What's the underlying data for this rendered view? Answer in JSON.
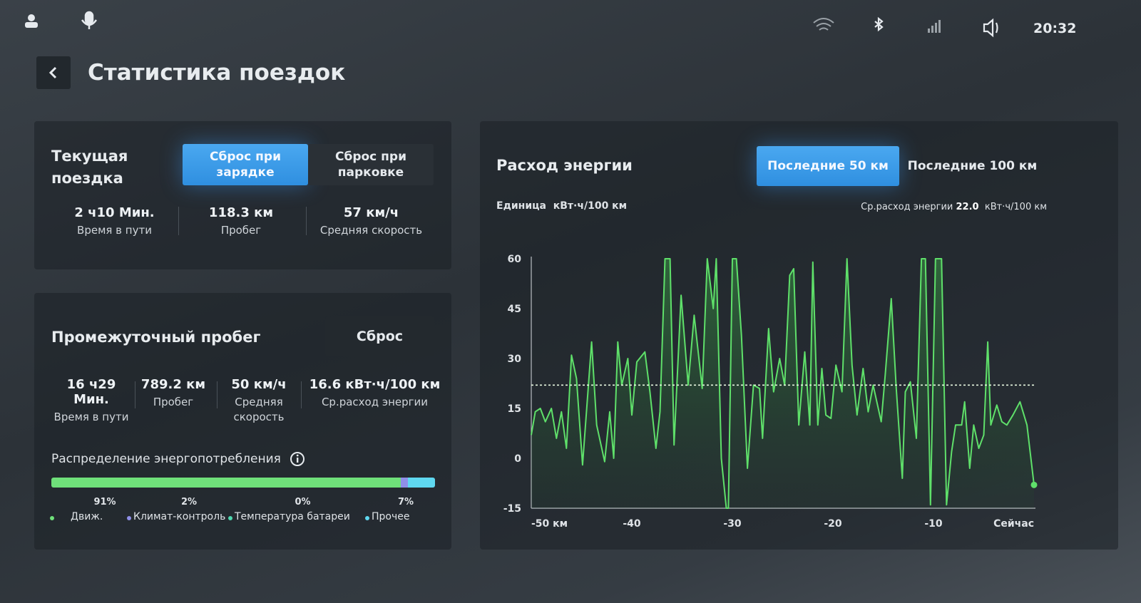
{
  "status_bar": {
    "time": "20:32"
  },
  "header": {
    "title": "Статистика поездок"
  },
  "current_trip": {
    "title": "Текущая поездка",
    "buttons": [
      "Сброс при зарядке",
      "Сброс при парковке"
    ],
    "stats": [
      {
        "value": "2 ч10 Мин.",
        "label": "Время в пути"
      },
      {
        "value": "118.3 км",
        "label": "Пробег"
      },
      {
        "value": "57 км/ч",
        "label": "Средняя скорость"
      }
    ]
  },
  "trip_meter": {
    "title": "Промежуточный пробег",
    "reset": "Сброс",
    "stats": [
      {
        "value": "16 ч29 Мин.",
        "label": "Время в пути"
      },
      {
        "value": "789.2 км",
        "label": "Пробег"
      },
      {
        "value": "50 км/ч",
        "label": "Средняя скорость"
      },
      {
        "value": "16.6 кВт·ч/100 км",
        "label": "Ср.расход энергии"
      }
    ],
    "distribution": {
      "title": "Распределение энергопотребления",
      "categories": [
        "Движ.",
        "Климат-контроль",
        "Температура батареи",
        "Прочее"
      ],
      "values": [
        91,
        2,
        0,
        7
      ],
      "value_labels": [
        "91%",
        "2%",
        "0%",
        "7%"
      ],
      "colors": [
        "#6fe07a",
        "#8f8fe8",
        "#4fd8b0",
        "#5fd8f0"
      ]
    }
  },
  "chart_data": {
    "type": "line",
    "title": "Расход энергии",
    "tabs": [
      "Последние 50 км",
      "Последние 100 км"
    ],
    "unit_label": "Единица",
    "unit": "кВт·ч/100 км",
    "average_label": "Ср.расход энергии",
    "average": {
      "value": 22,
      "label": "22.0"
    },
    "average_unit": "кВт·ч/100 км",
    "color": "#5fe06a",
    "x": [
      -50.0,
      -49.6,
      -49.1,
      -48.6,
      -48.0,
      -47.5,
      -47.0,
      -46.5,
      -46.0,
      -45.5,
      -44.9,
      -44.0,
      -43.5,
      -42.7,
      -42.2,
      -41.8,
      -41.4,
      -41.0,
      -40.4,
      -40.0,
      -39.5,
      -38.7,
      -38.2,
      -37.6,
      -37.2,
      -36.7,
      -36.2,
      -35.8,
      -35.1,
      -34.4,
      -33.8,
      -33.0,
      -32.5,
      -31.9,
      -31.6,
      -31.1,
      -30.6,
      -30.4,
      -30.0,
      -29.6,
      -29.1,
      -28.5,
      -27.9,
      -27.3,
      -27.0,
      -26.4,
      -25.9,
      -25.3,
      -24.8,
      -24.3,
      -23.9,
      -23.4,
      -22.8,
      -22.3,
      -22.0,
      -21.5,
      -21.1,
      -20.7,
      -20.2,
      -19.7,
      -19.1,
      -18.6,
      -18.1,
      -17.6,
      -17.0,
      -16.5,
      -16.0,
      -15.2,
      -14.8,
      -14.2,
      -13.7,
      -13.1,
      -12.8,
      -12.3,
      -11.7,
      -11.2,
      -10.8,
      -10.3,
      -9.8,
      -9.2,
      -8.7,
      -8.2,
      -7.8,
      -7.2,
      -6.9,
      -6.4,
      -6.0,
      -5.5,
      -5.0,
      -4.6,
      -4.3,
      -3.7,
      -3.2,
      -2.7,
      -2.1,
      -1.4,
      -0.7,
      0.0
    ],
    "values": [
      7,
      14,
      15,
      11,
      15,
      6,
      14,
      3,
      31,
      24,
      -2,
      35,
      10,
      -1,
      14,
      0,
      35,
      22,
      30,
      13,
      29,
      32,
      20,
      3,
      14,
      60,
      60,
      4,
      49,
      22,
      43,
      21,
      60,
      45,
      60,
      0,
      -15,
      -15,
      60,
      60,
      37,
      -3,
      22,
      21,
      6,
      39,
      20,
      30,
      22,
      55,
      57,
      10,
      32,
      10,
      59,
      10,
      27,
      13,
      12,
      28,
      20,
      60,
      28,
      13,
      27,
      14,
      22,
      11,
      25,
      48,
      21,
      -6,
      20,
      23,
      6,
      60,
      60,
      -14,
      60,
      60,
      -14,
      2,
      10,
      10,
      17,
      -3,
      10,
      3,
      7,
      35,
      10,
      16,
      11,
      10,
      13,
      17,
      10,
      -8
    ],
    "xlim": [
      -50,
      0
    ],
    "ylim": [
      -15,
      60
    ],
    "xticks": [
      {
        "value": -50,
        "label": "-50 км"
      },
      -40,
      -30,
      -20,
      -10,
      {
        "value": 0,
        "label": "Сейчас"
      }
    ],
    "yticks": [
      60,
      45,
      30,
      15,
      0,
      -15
    ]
  }
}
